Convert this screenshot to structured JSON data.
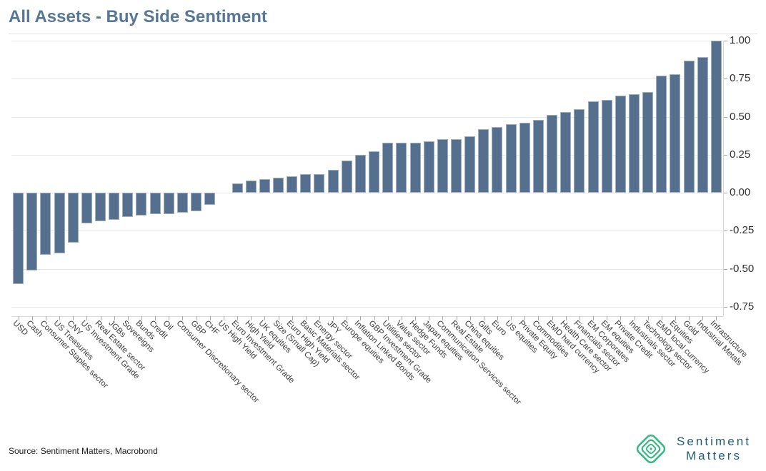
{
  "chart_data": {
    "type": "bar",
    "title": "All Assets - Buy Side Sentiment",
    "categories": [
      "USD",
      "Cash",
      "Consumer Staples sector",
      "US Treasuries",
      "CNY",
      "US Investment Grade",
      "Real Estate sector",
      "JGBs",
      "Sovereigns",
      "Bunds",
      "Credit",
      "Oil",
      "Consumer Discretionary sector",
      "GBP",
      "CHF",
      "US High Yield",
      "Euro Investment Grade",
      "High Yield",
      "UK equities",
      "Size (Small Cap)",
      "Euro High Yield",
      "Basic Materials sector",
      "Energy sector",
      "JPY",
      "Europe equities",
      "Inflation Linked Bonds",
      "GBP Investment Grade",
      "Utilities sector",
      "Value sector",
      "Hedge Funds",
      "Japan equities",
      "Communication Services sector",
      "Real Estate",
      "China equities",
      "Gilts",
      "Euro",
      "US equities",
      "Private Equity",
      "Commodities",
      "EMD hard currency",
      "Health Care sector",
      "Financials sector",
      "EM Corporates",
      "EM equities",
      "Private Credit",
      "Industrials sector",
      "Technology sector",
      "EMD local currency",
      "Equities",
      "Gold",
      "Industrial Metals",
      "Infrastructure"
    ],
    "values": [
      -0.6,
      -0.51,
      -0.41,
      -0.4,
      -0.33,
      -0.2,
      -0.19,
      -0.18,
      -0.16,
      -0.15,
      -0.14,
      -0.14,
      -0.13,
      -0.12,
      -0.08,
      0.0,
      0.06,
      0.08,
      0.09,
      0.1,
      0.11,
      0.12,
      0.12,
      0.15,
      0.21,
      0.25,
      0.27,
      0.33,
      0.33,
      0.33,
      0.34,
      0.35,
      0.35,
      0.37,
      0.42,
      0.43,
      0.45,
      0.46,
      0.48,
      0.51,
      0.53,
      0.55,
      0.6,
      0.61,
      0.64,
      0.65,
      0.66,
      0.77,
      0.78,
      0.87,
      0.89,
      1.0
    ],
    "y_ticks": [
      "1.00",
      "0.75",
      "0.50",
      "0.25",
      "0.00",
      "-0.25",
      "-0.50",
      "-0.75"
    ],
    "ylim": [
      -0.81,
      1.03
    ],
    "grid": true,
    "legend_position": "none",
    "bar_color": "#54708e",
    "title_color": "#567795"
  },
  "footer": {
    "source": "Source: Sentiment Matters, Macrobond"
  },
  "logo": {
    "line1": "Sentiment",
    "line2": "Matters",
    "icon": "nested-diamond-logo",
    "icon_color": "#35b980",
    "text_color": "#235e77"
  }
}
